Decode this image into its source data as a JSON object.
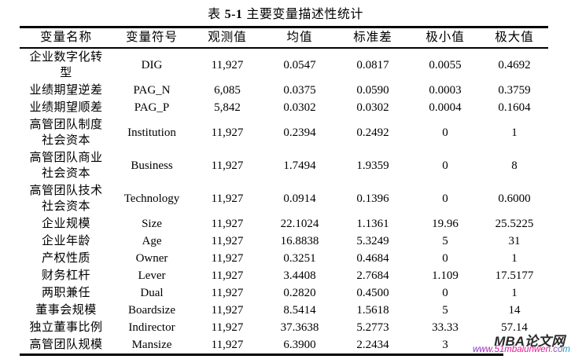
{
  "title": {
    "prefix": "表",
    "number": "5-1",
    "suffix": "主要变量描述性统计"
  },
  "table": {
    "columns": [
      "变量名称",
      "变量符号",
      "观测值",
      "均值",
      "标准差",
      "极小值",
      "极大值"
    ],
    "rows": [
      {
        "name": "企业数字化转型",
        "symbol": "DIG",
        "obs": "11,927",
        "mean": "0.0547",
        "sd": "0.0817",
        "min": "0.0055",
        "max": "0.4692"
      },
      {
        "name": "业绩期望逆差",
        "symbol": "PAG_N",
        "obs": "6,085",
        "mean": "0.0375",
        "sd": "0.0590",
        "min": "0.0003",
        "max": "0.3759"
      },
      {
        "name": "业绩期望顺差",
        "symbol": "PAG_P",
        "obs": "5,842",
        "mean": "0.0302",
        "sd": "0.0302",
        "min": "0.0004",
        "max": "0.1604"
      },
      {
        "name": "高管团队制度社会资本",
        "symbol": "Institution",
        "obs": "11,927",
        "mean": "0.2394",
        "sd": "0.2492",
        "min": "0",
        "max": "1"
      },
      {
        "name": "高管团队商业社会资本",
        "symbol": "Business",
        "obs": "11,927",
        "mean": "1.7494",
        "sd": "1.9359",
        "min": "0",
        "max": "8"
      },
      {
        "name": "高管团队技术社会资本",
        "symbol": "Technology",
        "obs": "11,927",
        "mean": "0.0914",
        "sd": "0.1396",
        "min": "0",
        "max": "0.6000"
      },
      {
        "name": "企业规模",
        "symbol": "Size",
        "obs": "11,927",
        "mean": "22.1024",
        "sd": "1.1361",
        "min": "19.96",
        "max": "25.5225"
      },
      {
        "name": "企业年龄",
        "symbol": "Age",
        "obs": "11,927",
        "mean": "16.8838",
        "sd": "5.3249",
        "min": "5",
        "max": "31"
      },
      {
        "name": "产权性质",
        "symbol": "Owner",
        "obs": "11,927",
        "mean": "0.3251",
        "sd": "0.4684",
        "min": "0",
        "max": "1"
      },
      {
        "name": "财务杠杆",
        "symbol": "Lever",
        "obs": "11,927",
        "mean": "3.4408",
        "sd": "2.7684",
        "min": "1.109",
        "max": "17.5177"
      },
      {
        "name": "两职兼任",
        "symbol": "Dual",
        "obs": "11,927",
        "mean": "0.2820",
        "sd": "0.4500",
        "min": "0",
        "max": "1"
      },
      {
        "name": "董事会规模",
        "symbol": "Boardsize",
        "obs": "11,927",
        "mean": "8.5414",
        "sd": "1.5618",
        "min": "5",
        "max": "14"
      },
      {
        "name": "独立董事比例",
        "symbol": "Indirector",
        "obs": "11,927",
        "mean": "37.3638",
        "sd": "5.2773",
        "min": "33.33",
        "max": "57.14"
      },
      {
        "name": "高管团队规模",
        "symbol": "Mansize",
        "obs": "11,927",
        "mean": "6.3900",
        "sd": "2.2434",
        "min": "3",
        "max": ""
      }
    ]
  },
  "watermark": {
    "brand": "MBA论文网",
    "url": "www.51mbalunwen.com",
    "brand_color": "#2a2a2a",
    "url_gradient": [
      "#7b2fd0",
      "#ee1199",
      "#00aacc"
    ]
  }
}
